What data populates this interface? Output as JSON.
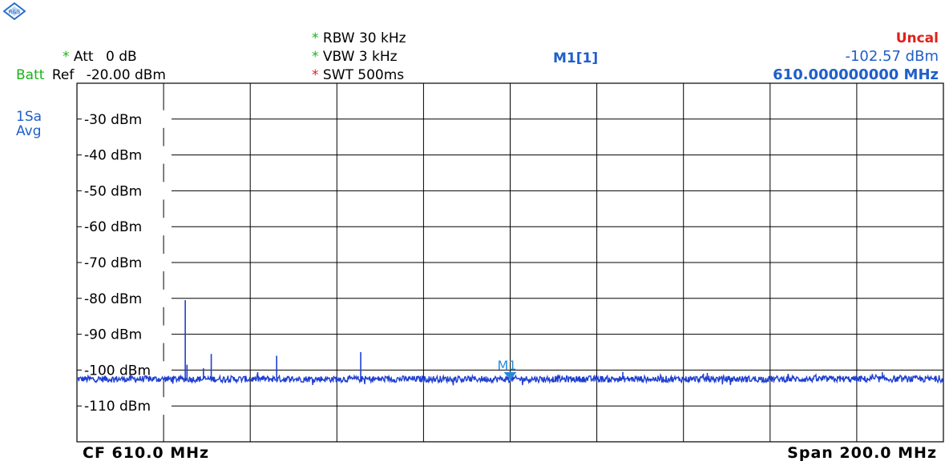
{
  "header": {
    "att_label": "Att",
    "att_value": "0 dB",
    "batt_label": "Batt",
    "ref_label": "Ref",
    "ref_value": "-20.00 dBm",
    "rbw": "RBW 30 kHz",
    "vbw": "VBW 3 kHz",
    "swt": "SWT 500ms",
    "marker_label": "M1[1]",
    "uncal": "Uncal",
    "marker_level": "-102.57 dBm",
    "marker_freq": "610.000000000 MHz",
    "trace_mode_1": "1Sa",
    "trace_mode_2": "Avg",
    "asterisk": "*"
  },
  "footer": {
    "cf": "CF 610.0 MHz",
    "span": "Span 200.0 MHz"
  },
  "colors": {
    "trace": "#1f3fd0",
    "marker": "#2a8ad6",
    "grid": "#000000",
    "accent_blue": "#1f5fc9",
    "red": "#e0201a",
    "green": "#1bb31b"
  },
  "chart_data": {
    "type": "line",
    "title": "",
    "xlabel": "",
    "ylabel": "",
    "center_freq_mhz": 610.0,
    "span_mhz": 200.0,
    "xlim": [
      510.0,
      710.0
    ],
    "ylim": [
      -120,
      -20
    ],
    "y_ticks": [
      {
        "value": -30,
        "label": "-30 dBm"
      },
      {
        "value": -40,
        "label": "-40 dBm"
      },
      {
        "value": -50,
        "label": "-50 dBm"
      },
      {
        "value": -60,
        "label": "-60 dBm"
      },
      {
        "value": -70,
        "label": "-70 dBm"
      },
      {
        "value": -80,
        "label": "-80 dBm"
      },
      {
        "value": -90,
        "label": "-90 dBm"
      },
      {
        "value": -100,
        "label": "-100 dBm"
      },
      {
        "value": -110,
        "label": "-110 dBm"
      }
    ],
    "grid": true,
    "noise_floor_dbm": -102.5,
    "spurs": [
      {
        "x": 535.0,
        "y": -80.5
      },
      {
        "x": 535.4,
        "y": -98.5
      },
      {
        "x": 539.2,
        "y": -99.5
      },
      {
        "x": 541.0,
        "y": -95.5
      },
      {
        "x": 556.1,
        "y": -96.0
      },
      {
        "x": 575.5,
        "y": -95.0
      },
      {
        "x": 636.0,
        "y": -100.5
      },
      {
        "x": 654.6,
        "y": -101.0
      },
      {
        "x": 655.5,
        "y": -100.8
      },
      {
        "x": 695.9,
        "y": -100.6
      }
    ],
    "marker": {
      "name": "M1",
      "x": 610.0,
      "y": -102.57
    }
  }
}
